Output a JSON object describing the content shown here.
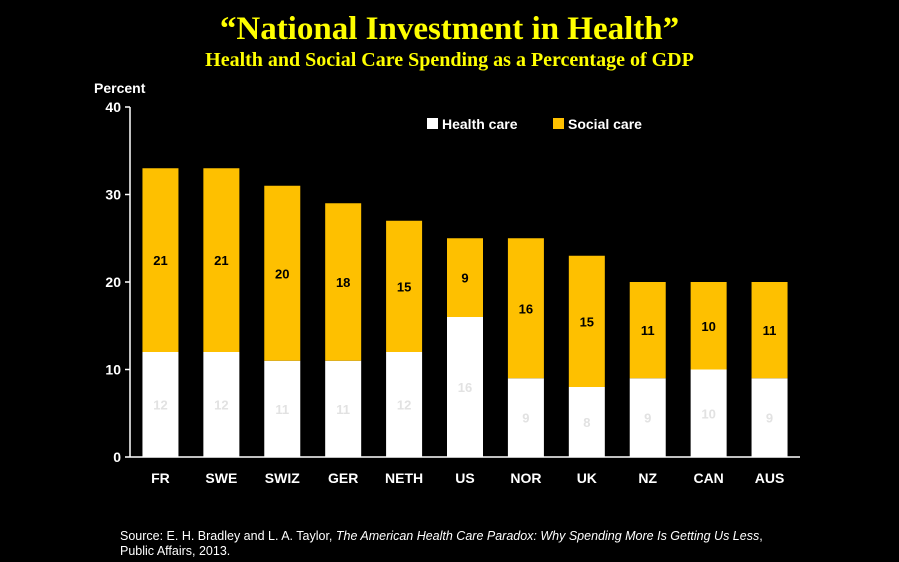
{
  "header": {
    "title": "“National Investment in Health”",
    "subtitle": "Health and Social Care Spending as a Percentage of GDP"
  },
  "chart_data": {
    "type": "bar",
    "stacked": true,
    "ylabel": "Percent",
    "ylim": [
      0,
      40
    ],
    "yticks": [
      0,
      10,
      20,
      30,
      40
    ],
    "grid": false,
    "legend_position": "top-right",
    "categories": [
      "FR",
      "SWE",
      "SWIZ",
      "GER",
      "NETH",
      "US",
      "NOR",
      "UK",
      "NZ",
      "CAN",
      "AUS"
    ],
    "series": [
      {
        "name": "Health care",
        "color": "#ffffff",
        "values": [
          12,
          12,
          11,
          11,
          12,
          16,
          9,
          8,
          9,
          10,
          9
        ],
        "labels": [
          "12",
          "12",
          "11",
          "11",
          "12",
          "16",
          "9",
          "8",
          "9",
          "10",
          "9"
        ]
      },
      {
        "name": "Social care",
        "color": "#fec000",
        "values": [
          21,
          21,
          20,
          18,
          15,
          9,
          16,
          15,
          11,
          10,
          11
        ],
        "labels": [
          "21",
          "21",
          "20",
          "18",
          "15",
          "9",
          "16",
          "15",
          "11",
          "10",
          "11"
        ]
      }
    ]
  },
  "source": {
    "prefix": "Source: E. H. Bradley and L. A. Taylor,",
    "book_title": "The American Health Care Paradox: Why Spending More Is Getting Us Less",
    "suffix": ",",
    "publisher": "Public Affairs, 2013."
  }
}
